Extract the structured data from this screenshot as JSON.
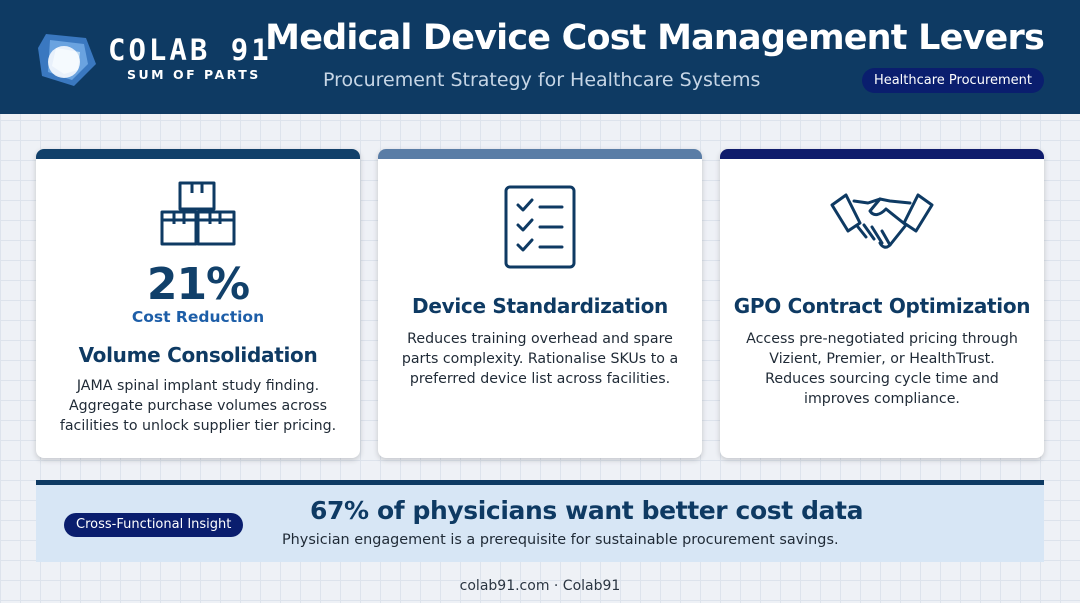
{
  "brand": {
    "name": "COLAB 91",
    "tagline": "SUM OF PARTS",
    "logo_icon": "colab91-logo-icon",
    "colors": {
      "primary": "#0e3a63",
      "accent": "#1d5ea8",
      "badge": "#0a1e6e"
    }
  },
  "header": {
    "title": "Medical Device Cost Management Levers",
    "subtitle": "Procurement Strategy for Healthcare Systems",
    "badge": "Healthcare Procurement"
  },
  "cards": [
    {
      "icon": "boxes-icon",
      "stat_value": "21%",
      "stat_label": "Cost Reduction",
      "title": "Volume Consolidation",
      "text": "JAMA spinal implant study finding. Aggregate purchase volumes across facilities to unlock supplier tier pricing.",
      "accent_color": "#11406a"
    },
    {
      "icon": "checklist-icon",
      "title": "Device Standardization",
      "text": "Reduces training overhead and spare parts complexity. Rationalise SKUs to a preferred device list across facilities.",
      "accent_color": "#5a7da6"
    },
    {
      "icon": "handshake-icon",
      "title": "GPO Contract Optimization",
      "text": "Access pre-negotiated pricing through Vizient, Premier, or HealthTrust. Reduces sourcing cycle time and improves compliance.",
      "accent_color": "#0f1c6c"
    }
  ],
  "insight": {
    "badge": "Cross-Functional Insight",
    "title": "67% of physicians want better cost data",
    "text": "Physician engagement is a prerequisite for sustainable procurement savings."
  },
  "footer": {
    "text": "colab91.com · Colab91"
  }
}
